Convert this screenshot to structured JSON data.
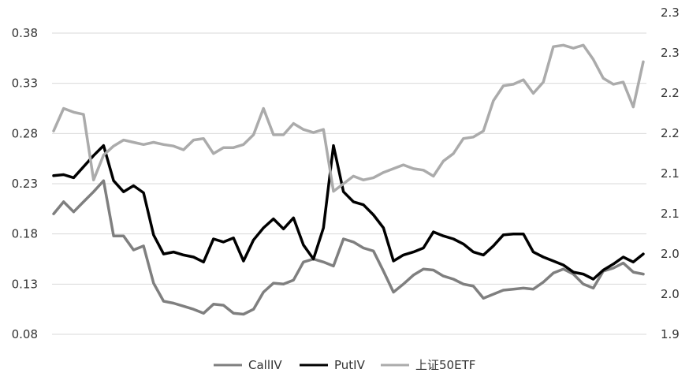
{
  "chart_data": {
    "type": "line",
    "title": "",
    "xlabel": "",
    "ylabel": "",
    "grid": true,
    "legend_position": "bottom",
    "y_left": {
      "ticks": [
        "0.08",
        "0.13",
        "0.18",
        "0.23",
        "0.28",
        "0.33",
        "0.38"
      ],
      "ylim": [
        0.08,
        0.38
      ]
    },
    "y_right": {
      "ticks": [
        "1.9",
        "2.0",
        "2.0",
        "2.1",
        "2.1",
        "2.2",
        "2.2",
        "2.3",
        "2.3"
      ],
      "ylim": [
        1.9,
        2.3
      ]
    },
    "series": [
      {
        "name": "CallIV",
        "axis": "left",
        "color": "#7f7f7f",
        "values": [
          0.2,
          0.212,
          0.202,
          0.212,
          0.222,
          0.233,
          0.178,
          0.178,
          0.164,
          0.168,
          0.131,
          0.113,
          0.111,
          0.108,
          0.105,
          0.101,
          0.11,
          0.109,
          0.101,
          0.1,
          0.105,
          0.122,
          0.131,
          0.13,
          0.134,
          0.152,
          0.155,
          0.152,
          0.148,
          0.175,
          0.172,
          0.166,
          0.163,
          0.143,
          0.122,
          0.13,
          0.139,
          0.145,
          0.144,
          0.138,
          0.135,
          0.13,
          0.128,
          0.116,
          0.12,
          0.124,
          0.125,
          0.126,
          0.125,
          0.132,
          0.141,
          0.145,
          0.14,
          0.13,
          0.126,
          0.143,
          0.146,
          0.151,
          0.142,
          0.14
        ]
      },
      {
        "name": "PutIV",
        "axis": "left",
        "color": "#000000",
        "values": [
          0.238,
          0.239,
          0.236,
          0.247,
          0.258,
          0.268,
          0.233,
          0.222,
          0.228,
          0.221,
          0.179,
          0.16,
          0.162,
          0.159,
          0.157,
          0.152,
          0.175,
          0.172,
          0.176,
          0.153,
          0.174,
          0.186,
          0.195,
          0.185,
          0.196,
          0.169,
          0.155,
          0.186,
          0.268,
          0.222,
          0.212,
          0.209,
          0.199,
          0.186,
          0.153,
          0.159,
          0.162,
          0.166,
          0.182,
          0.178,
          0.175,
          0.17,
          0.162,
          0.159,
          0.168,
          0.179,
          0.18,
          0.18,
          0.162,
          0.157,
          0.153,
          0.149,
          0.142,
          0.14,
          0.135,
          0.144,
          0.15,
          0.157,
          0.152,
          0.16
        ]
      },
      {
        "name": "上证50ETF",
        "axis": "right",
        "color": "#ababab",
        "values": [
          2.17,
          2.2,
          2.195,
          2.192,
          2.105,
          2.138,
          2.15,
          2.158,
          2.155,
          2.152,
          2.155,
          2.152,
          2.15,
          2.145,
          2.158,
          2.16,
          2.14,
          2.148,
          2.148,
          2.152,
          2.165,
          2.2,
          2.165,
          2.165,
          2.18,
          2.172,
          2.168,
          2.172,
          2.09,
          2.1,
          2.11,
          2.105,
          2.108,
          2.115,
          2.12,
          2.125,
          2.12,
          2.118,
          2.11,
          2.13,
          2.14,
          2.16,
          2.162,
          2.17,
          2.21,
          2.23,
          2.232,
          2.238,
          2.22,
          2.235,
          2.282,
          2.284,
          2.28,
          2.284,
          2.265,
          2.24,
          2.232,
          2.235,
          2.202,
          2.262
        ]
      }
    ]
  },
  "legend": {
    "callIV": "CallIV",
    "putIV": "PutIV",
    "etf": "上证50ETF"
  }
}
